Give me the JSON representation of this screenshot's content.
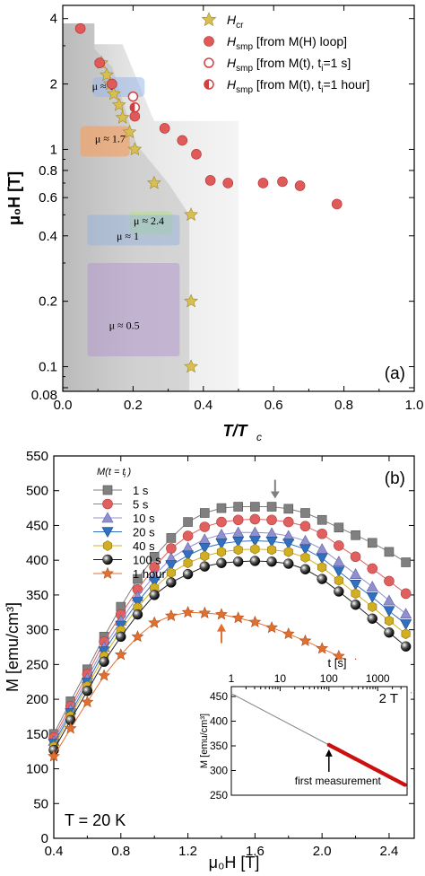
{
  "chart_data": [
    {
      "type": "scatter",
      "panel_label": "(a)",
      "xlabel": "T/T",
      "xlabel_sub": "c",
      "ylabel": "μ₀H [T]",
      "xlim": [
        0,
        1.0
      ],
      "ylim": [
        0.08,
        4.5
      ],
      "y_scale": "log",
      "x_ticks": [
        "0.0",
        "0.2",
        "0.4",
        "0.6",
        "0.8",
        "1.0"
      ],
      "y_ticks": [
        {
          "v": 4,
          "label": "4"
        },
        {
          "v": 2,
          "label": "2"
        },
        {
          "v": 1,
          "label": "1"
        },
        {
          "v": 0.8,
          "label": "0.8"
        },
        {
          "v": 0.6,
          "label": "0.6"
        },
        {
          "v": 0.4,
          "label": "0.4"
        },
        {
          "v": 0.2,
          "label": "0.2"
        },
        {
          "v": 0.1,
          "label": "0.1"
        },
        {
          "v": 0.08,
          "label": "0.08"
        }
      ],
      "legend": [
        {
          "marker": "star",
          "main": "H",
          "sub": "cr",
          "tail": ""
        },
        {
          "marker": "circle",
          "main": "H",
          "sub": "smp",
          "tail": " [from M(H) loop]"
        },
        {
          "marker": "open-circle",
          "main": "H",
          "sub": "smp",
          "tail": " [from M(t), t",
          "tsub": "i",
          "tend": "=1 s]"
        },
        {
          "marker": "half-circle",
          "main": "H",
          "sub": "smp",
          "tail": " [from M(t), t",
          "tsub": "i",
          "tend": "=1 hour]"
        }
      ],
      "series": [
        {
          "name": "Hcr",
          "marker": "star",
          "color": "#c8b040",
          "points": [
            [
              0.11,
              2.5
            ],
            [
              0.125,
              2.2
            ],
            [
              0.135,
              2.0
            ],
            [
              0.145,
              1.8
            ],
            [
              0.16,
              1.6
            ],
            [
              0.17,
              1.4
            ],
            [
              0.19,
              1.2
            ],
            [
              0.205,
              1.0
            ],
            [
              0.26,
              0.7
            ],
            [
              0.365,
              0.5
            ],
            [
              0.365,
              0.2
            ],
            [
              0.365,
              0.1
            ]
          ]
        },
        {
          "name": "Hsmp M(H)",
          "marker": "circle",
          "color": "#e05a5a",
          "points": [
            [
              0.05,
              3.6
            ],
            [
              0.105,
              2.5
            ],
            [
              0.14,
              2.0
            ],
            [
              0.205,
              1.42
            ],
            [
              0.29,
              1.25
            ],
            [
              0.34,
              1.1
            ],
            [
              0.38,
              0.95
            ],
            [
              0.42,
              0.72
            ],
            [
              0.47,
              0.7
            ],
            [
              0.57,
              0.7
            ],
            [
              0.625,
              0.71
            ],
            [
              0.675,
              0.68
            ],
            [
              0.78,
              0.56
            ]
          ]
        },
        {
          "name": "Hsmp M(t) 1 s",
          "marker": "open-circle",
          "color": "#d04040",
          "points": [
            [
              0.2,
              1.75
            ]
          ]
        },
        {
          "name": "Hsmp M(t) 1 hour",
          "marker": "half-circle",
          "color": "#d04040",
          "points": [
            [
              0.205,
              1.56
            ]
          ]
        }
      ],
      "annotations": [
        "μ ≈ 1",
        "μ ≈ 1.7",
        "μ ≈ 2.4",
        "μ ≈ 1",
        "μ ≈ 0.5"
      ]
    },
    {
      "type": "line",
      "panel_label": "(b)",
      "xlabel": "μ₀H [T]",
      "ylabel": "M [emu/cm³]",
      "xlim": [
        0.4,
        2.55
      ],
      "ylim": [
        0,
        550
      ],
      "x_ticks": [
        "0.4",
        "0.8",
        "1.2",
        "1.6",
        "2.0",
        "2.4"
      ],
      "y_ticks": [
        "0",
        "50",
        "100",
        "150",
        "200",
        "250",
        "300",
        "350",
        "400",
        "450",
        "500",
        "550"
      ],
      "legend_title": "M(t = t )",
      "legend_title_sub": "i",
      "temperature_label": "T = 20 K",
      "x": [
        0.4,
        0.5,
        0.6,
        0.7,
        0.8,
        0.9,
        1.0,
        1.1,
        1.2,
        1.3,
        1.4,
        1.5,
        1.6,
        1.7,
        1.8,
        1.9,
        2.0,
        2.1,
        2.2,
        2.3,
        2.4,
        2.5
      ],
      "series": [
        {
          "name": "1 s",
          "marker": "square",
          "color": "#808080",
          "values": [
            150,
            197,
            243,
            290,
            333,
            373,
            405,
            432,
            455,
            468,
            475,
            477,
            477,
            477,
            474,
            468,
            458,
            447,
            436,
            425,
            412,
            397
          ]
        },
        {
          "name": "5 s",
          "marker": "circle",
          "color": "#e06060",
          "values": [
            145,
            190,
            236,
            283,
            322,
            358,
            390,
            417,
            435,
            448,
            455,
            458,
            459,
            458,
            455,
            449,
            438,
            421,
            405,
            388,
            370,
            352
          ]
        },
        {
          "name": "10 s",
          "marker": "triangle-up",
          "color": "#9090d0",
          "values": [
            140,
            185,
            230,
            275,
            313,
            348,
            378,
            403,
            418,
            430,
            437,
            440,
            440,
            439,
            435,
            428,
            416,
            398,
            380,
            362,
            342,
            323
          ]
        },
        {
          "name": "20 s",
          "marker": "triangle-down",
          "color": "#3070c0",
          "values": [
            136,
            180,
            224,
            269,
            306,
            340,
            369,
            393,
            407,
            418,
            424,
            427,
            428,
            427,
            424,
            416,
            403,
            384,
            365,
            347,
            327,
            308
          ]
        },
        {
          "name": "40 s",
          "marker": "hex",
          "color": "#d0b020",
          "values": [
            132,
            176,
            219,
            262,
            299,
            332,
            360,
            382,
            396,
            406,
            412,
            415,
            416,
            415,
            412,
            404,
            390,
            371,
            352,
            333,
            313,
            294
          ]
        },
        {
          "name": "100 s",
          "marker": "sphere",
          "color": "#202020",
          "values": [
            127,
            170,
            212,
            254,
            290,
            322,
            350,
            368,
            380,
            391,
            396,
            398,
            399,
            398,
            395,
            387,
            373,
            355,
            336,
            316,
            296,
            276
          ]
        },
        {
          "name": "1 hour",
          "marker": "star",
          "color": "#e07030",
          "values": [
            118,
            158,
            196,
            234,
            264,
            290,
            310,
            320,
            325,
            324,
            322,
            317,
            311,
            303,
            294,
            284,
            273,
            262,
            250,
            237,
            222,
            207
          ]
        }
      ],
      "arrows": [
        {
          "x": 1.72,
          "color": "#808080",
          "direction": "down",
          "target_series": "1 s"
        },
        {
          "x": 1.4,
          "color": "#e07030",
          "direction": "up",
          "target_series": "1 hour"
        }
      ],
      "inset": {
        "type": "line",
        "xlabel": "t [s]",
        "ylabel": "M [emu/cm³]",
        "x_scale": "log",
        "xlim": [
          1,
          4000
        ],
        "ylim": [
          250,
          470
        ],
        "x_ticks": [
          {
            "v": 1,
            "label": "1"
          },
          {
            "v": 10,
            "label": "10"
          },
          {
            "v": 100,
            "label": "100"
          },
          {
            "v": 1000,
            "label": "1000"
          }
        ],
        "y_ticks": [
          "250",
          "300",
          "350",
          "400",
          "450"
        ],
        "field_label": "2 T",
        "annotation": "first measurement",
        "first_measurement_t": 100,
        "line": {
          "t_start": 1,
          "m_start": 456,
          "t_end": 3600,
          "m_end": 271
        }
      }
    }
  ]
}
